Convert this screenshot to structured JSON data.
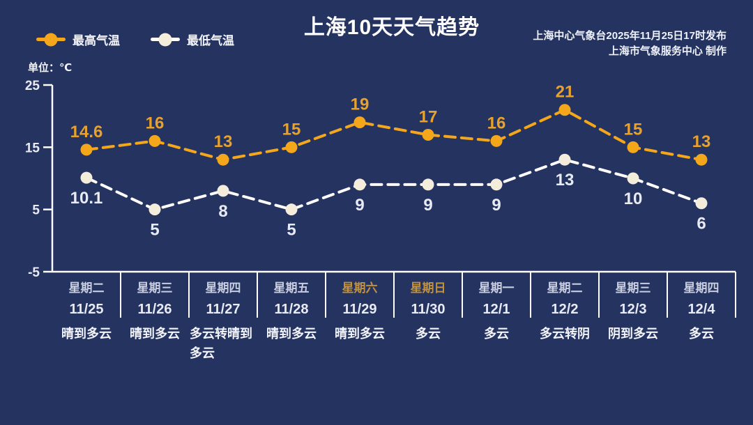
{
  "header": {
    "title": "上海10天天气趋势",
    "publisher_line1": "上海中心气象台2025年11月25日17时发布",
    "publisher_line2": "上海市气象服务中心 制作"
  },
  "legend": {
    "max_label": "最高气温",
    "min_label": "最低气温"
  },
  "unit_label": "单位：℃",
  "colors": {
    "background": "#253360",
    "max_line": "#F4A71B",
    "max_value_label": "#E8A22B",
    "min_line": "#FFFFFF",
    "min_marker": "#F4EDDC",
    "min_value_label": "#E9EBF4",
    "axis": "#FFFFFF",
    "weekday_text": "#C8CDE0",
    "weekend_text": "#C0923E",
    "date_text": "#E9EBF4",
    "weather_text": "#F2F4F9"
  },
  "chart_data": {
    "type": "line",
    "title": "上海10天天气趋势",
    "ylabel": "℃",
    "ylim": [
      -5,
      25
    ],
    "yticks": [
      25,
      15,
      5,
      -5
    ],
    "grid": false,
    "legend_position": "top-left",
    "line_style": "dashed",
    "categories": [
      "11/25",
      "11/26",
      "11/27",
      "11/28",
      "11/29",
      "11/30",
      "12/1",
      "12/2",
      "12/3",
      "12/4"
    ],
    "series": [
      {
        "name": "最高气温",
        "values": [
          14.6,
          16,
          13,
          15,
          19,
          17,
          16,
          21,
          15,
          13
        ]
      },
      {
        "name": "最低气温",
        "values": [
          10.1,
          5,
          8,
          5,
          9,
          9,
          9,
          13,
          10,
          6
        ]
      }
    ],
    "days": [
      {
        "week": "星期二",
        "date": "11/25",
        "weather": "晴到多云",
        "weekend": false
      },
      {
        "week": "星期三",
        "date": "11/26",
        "weather": "晴到多云",
        "weekend": false
      },
      {
        "week": "星期四",
        "date": "11/27",
        "weather": "多云转晴到多云",
        "weekend": false
      },
      {
        "week": "星期五",
        "date": "11/28",
        "weather": "晴到多云",
        "weekend": false
      },
      {
        "week": "星期六",
        "date": "11/29",
        "weather": "晴到多云",
        "weekend": true
      },
      {
        "week": "星期日",
        "date": "11/30",
        "weather": "多云",
        "weekend": true
      },
      {
        "week": "星期一",
        "date": "12/1",
        "weather": "多云",
        "weekend": false
      },
      {
        "week": "星期二",
        "date": "12/2",
        "weather": "多云转阴",
        "weekend": false
      },
      {
        "week": "星期三",
        "date": "12/3",
        "weather": "阴到多云",
        "weekend": false
      },
      {
        "week": "星期四",
        "date": "12/4",
        "weather": "多云",
        "weekend": false
      }
    ]
  }
}
